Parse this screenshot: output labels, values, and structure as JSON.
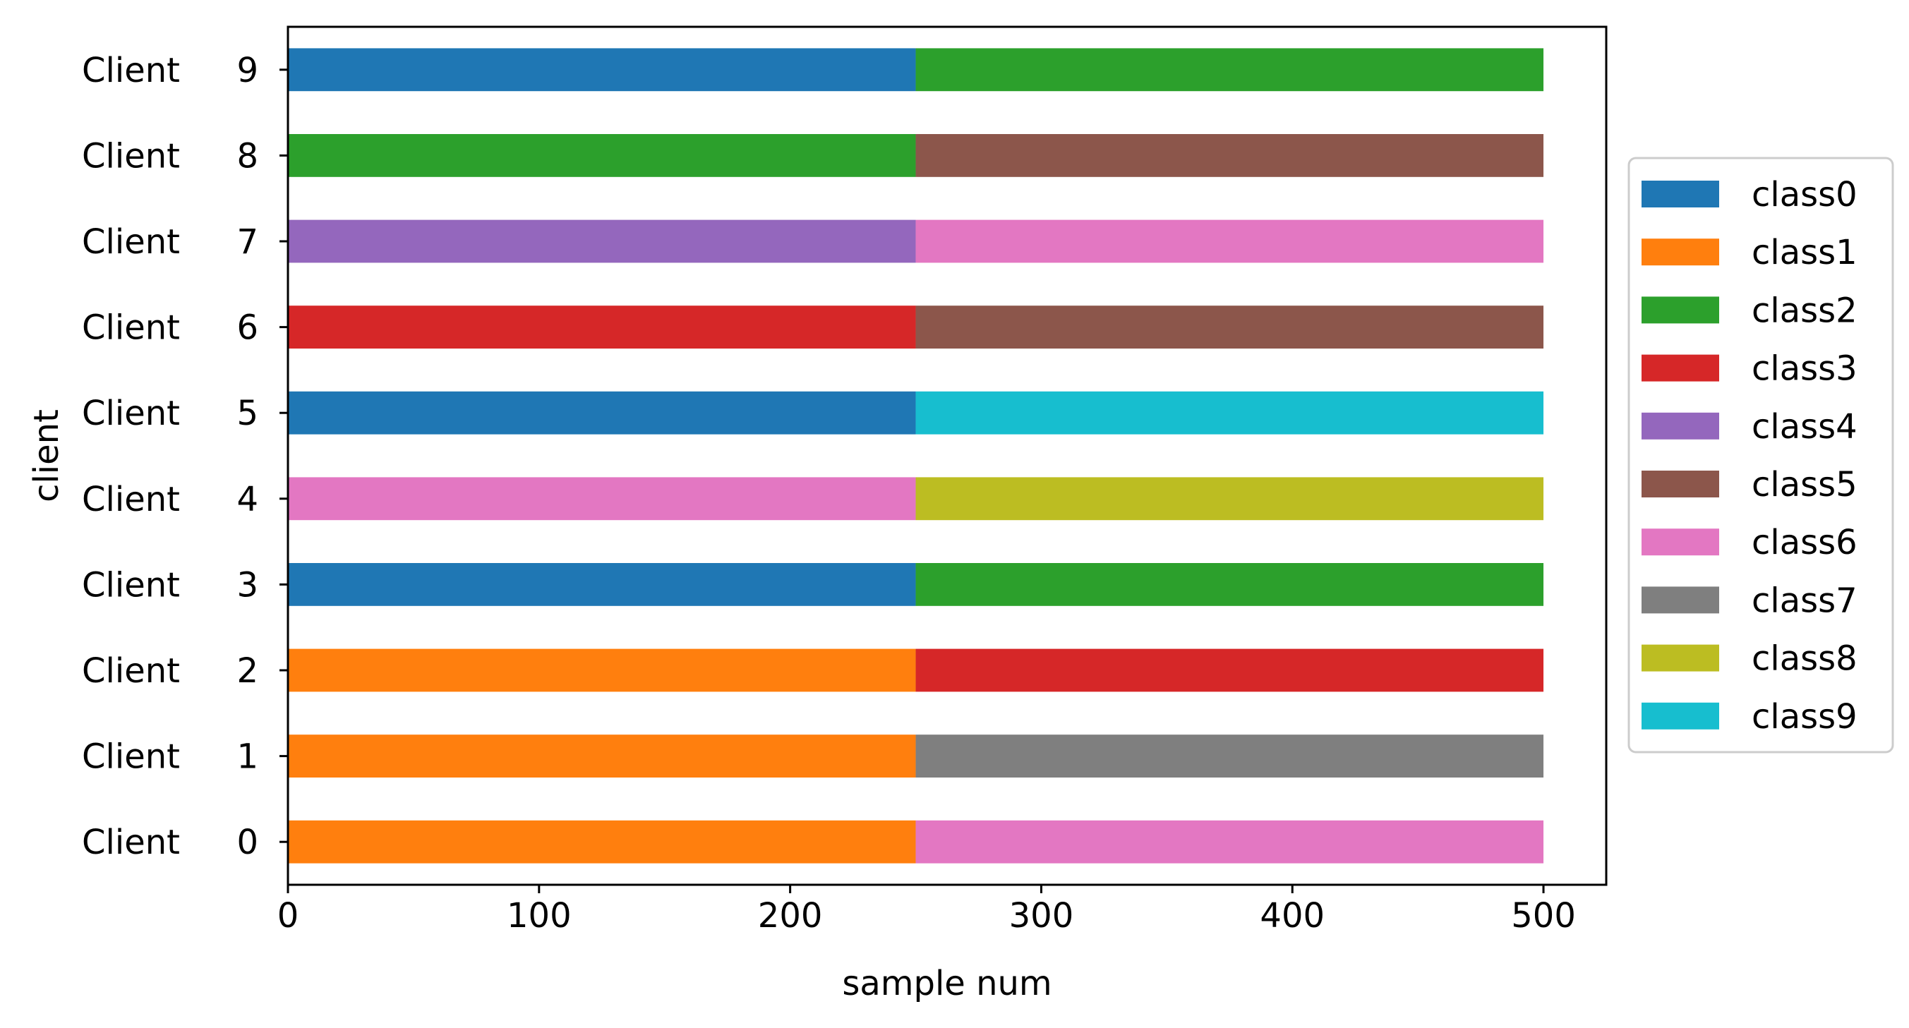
{
  "chart_data": {
    "type": "bar",
    "orientation": "horizontal",
    "stacked": true,
    "title": "",
    "xlabel": "sample num",
    "ylabel": "client",
    "xlim": [
      0,
      525
    ],
    "x_ticks": [
      "0",
      "100",
      "200",
      "300",
      "400",
      "500"
    ],
    "x_tick_values": [
      0,
      100,
      200,
      300,
      400,
      500
    ],
    "categories": [
      "Client 0",
      "Client 1",
      "Client 2",
      "Client 3",
      "Client 4",
      "Client 5",
      "Client 6",
      "Client 7",
      "Client 8",
      "Client 9"
    ],
    "series": [
      {
        "name": "class0",
        "color": "#1f77b4",
        "values": [
          0,
          0,
          0,
          250,
          0,
          250,
          0,
          0,
          0,
          250
        ]
      },
      {
        "name": "class1",
        "color": "#ff7f0e",
        "values": [
          250,
          250,
          250,
          0,
          0,
          0,
          0,
          0,
          0,
          0
        ]
      },
      {
        "name": "class2",
        "color": "#2ca02c",
        "values": [
          0,
          0,
          0,
          250,
          0,
          0,
          0,
          0,
          250,
          250
        ]
      },
      {
        "name": "class3",
        "color": "#d62728",
        "values": [
          0,
          0,
          250,
          0,
          0,
          0,
          250,
          0,
          0,
          0
        ]
      },
      {
        "name": "class4",
        "color": "#9467bd",
        "values": [
          0,
          0,
          0,
          0,
          0,
          0,
          0,
          250,
          0,
          0
        ]
      },
      {
        "name": "class5",
        "color": "#8c564b",
        "values": [
          0,
          0,
          0,
          0,
          0,
          0,
          250,
          0,
          250,
          0
        ]
      },
      {
        "name": "class6",
        "color": "#e377c2",
        "values": [
          250,
          0,
          0,
          0,
          250,
          0,
          0,
          250,
          0,
          0
        ]
      },
      {
        "name": "class7",
        "color": "#7f7f7f",
        "values": [
          0,
          250,
          0,
          0,
          0,
          0,
          0,
          0,
          0,
          0
        ]
      },
      {
        "name": "class8",
        "color": "#bcbd22",
        "values": [
          0,
          0,
          0,
          0,
          250,
          0,
          0,
          0,
          0,
          0
        ]
      },
      {
        "name": "class9",
        "color": "#17becf",
        "values": [
          0,
          0,
          0,
          0,
          0,
          250,
          0,
          0,
          0,
          0
        ]
      }
    ],
    "grid": false,
    "legend_position": "center-right"
  }
}
